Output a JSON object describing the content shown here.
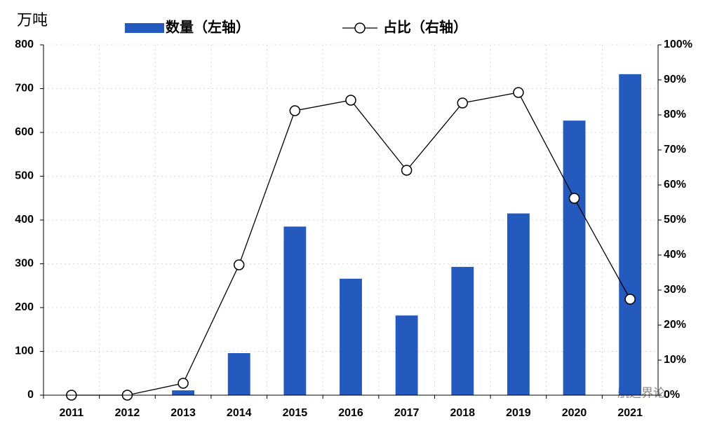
{
  "chart_data": {
    "type": "bar-line",
    "y_label": "万吨",
    "categories": [
      "2011",
      "2012",
      "2013",
      "2014",
      "2015",
      "2016",
      "2017",
      "2018",
      "2019",
      "2020",
      "2021"
    ],
    "series": [
      {
        "name": "数量（左轴）",
        "type": "bar",
        "color": "#2459bd",
        "values": [
          0,
          0,
          11,
          96,
          385,
          266,
          182,
          293,
          415,
          627,
          733
        ]
      },
      {
        "name": "占比（右轴）",
        "type": "line",
        "axis": "y2",
        "color": "#000000",
        "values": [
          0,
          0,
          3.4,
          37.2,
          81.2,
          84.2,
          64.2,
          83.4,
          86.4,
          56.2,
          27.4
        ]
      }
    ],
    "ylim": [
      0,
      800
    ],
    "yticks": [
      0,
      100,
      200,
      300,
      400,
      500,
      600,
      700,
      800
    ],
    "y2lim": [
      0,
      100
    ],
    "y2ticks": [
      {
        "value": 0,
        "label": "0%"
      },
      {
        "value": 10,
        "label": "10%"
      },
      {
        "value": 20,
        "label": "20%"
      },
      {
        "value": 30,
        "label": "30%"
      },
      {
        "value": 40,
        "label": "40%"
      },
      {
        "value": 50,
        "label": "50%"
      },
      {
        "value": 60,
        "label": "60%"
      },
      {
        "value": 70,
        "label": "70%"
      },
      {
        "value": 80,
        "label": "80%"
      },
      {
        "value": 90,
        "label": "90%"
      },
      {
        "value": 100,
        "label": "100%"
      }
    ],
    "grid": true,
    "watermark": "航运界论"
  }
}
